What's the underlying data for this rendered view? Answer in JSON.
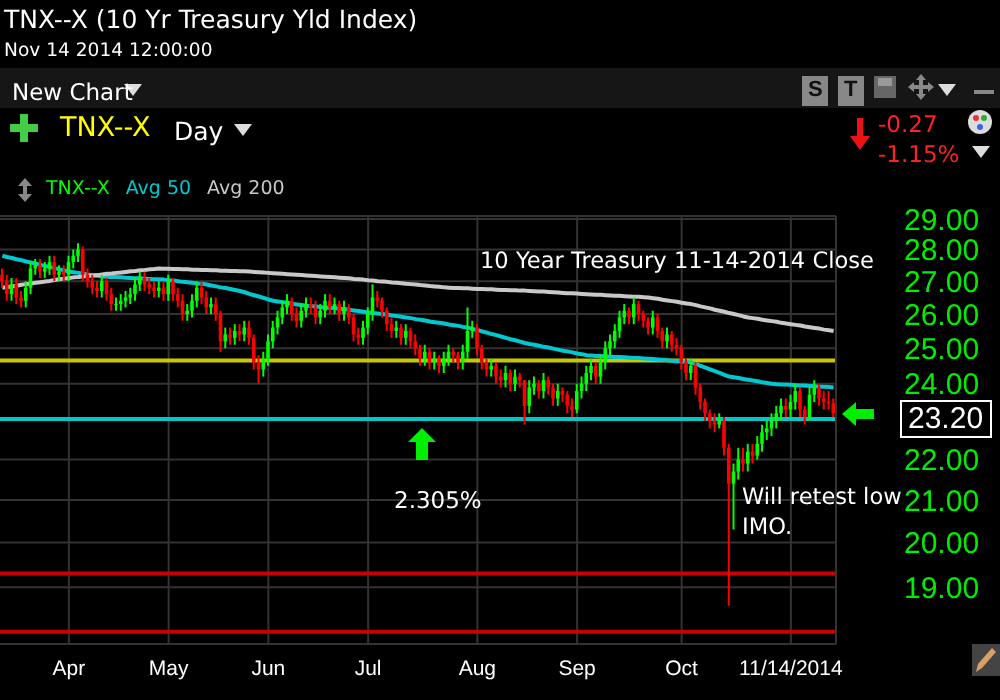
{
  "chart_data": {
    "type": "candlestick",
    "title": "TNX--X (10 Yr Treasury Yld Index)",
    "subtitle": "Nov 14 2014 12:00:00",
    "categories": [
      null,
      null,
      null,
      null,
      null,
      null,
      null,
      null,
      null,
      null,
      null,
      null,
      null,
      null,
      "Apr",
      null,
      null,
      null,
      null,
      null,
      null,
      null,
      null,
      null,
      null,
      null,
      null,
      null,
      null,
      null,
      null,
      null,
      null,
      null,
      null,
      "May",
      null,
      null,
      null,
      null,
      null,
      null,
      null,
      null,
      null,
      null,
      null,
      null,
      null,
      null,
      null,
      null,
      null,
      null,
      null,
      null,
      "Jun",
      null,
      null,
      null,
      null,
      null,
      null,
      null,
      null,
      null,
      null,
      null,
      null,
      null,
      null,
      null,
      null,
      null,
      null,
      null,
      null,
      "Jul",
      null,
      null,
      null,
      null,
      null,
      null,
      null,
      null,
      null,
      null,
      null,
      null,
      null,
      null,
      null,
      null,
      null,
      null,
      null,
      null,
      null,
      null,
      "Aug",
      null,
      null,
      null,
      null,
      null,
      null,
      null,
      null,
      null,
      null,
      null,
      null,
      null,
      null,
      null,
      null,
      null,
      null,
      null,
      null,
      "Sep",
      null,
      null,
      null,
      null,
      null,
      null,
      null,
      null,
      null,
      null,
      null,
      null,
      null,
      null,
      null,
      null,
      null,
      null,
      null,
      null,
      null,
      "Oct",
      null,
      null,
      null,
      null,
      null,
      null,
      null,
      null,
      null,
      null,
      null,
      null,
      null,
      null,
      null,
      null,
      null,
      null,
      null,
      null,
      null,
      null,
      "11/14/2014",
      null,
      null,
      null,
      null,
      null,
      null,
      null,
      null,
      null
    ],
    "series": [
      {
        "name": "TNX--X",
        "color": "#00ff00",
        "colors": [
          "#ff0000",
          "#ff0000",
          "#00ff00",
          "#ff0000",
          "#ff0000",
          "#00ff00",
          "#00ff00",
          "#00ff00",
          "#ff0000",
          "#00ff00",
          "#00ff00",
          "#ff0000",
          "#00ff00",
          "#ff0000",
          "#00ff00",
          "#00ff00",
          "#00ff00",
          "#ff0000",
          "#ff0000",
          "#ff0000",
          "#ff0000",
          "#00ff00",
          "#ff0000",
          "#ff0000",
          "#00ff00",
          "#00ff00",
          "#00ff00",
          "#00ff00",
          "#00ff00",
          "#00ff00",
          "#ff0000",
          "#ff0000",
          "#ff0000",
          "#00ff00",
          "#ff0000",
          "#00ff00",
          "#ff0000",
          "#ff0000",
          "#ff0000",
          "#00ff00",
          "#00ff00",
          "#00ff00",
          "#ff0000",
          "#ff0000",
          "#00ff00",
          "#ff0000",
          "#ff0000",
          "#00ff00",
          "#ff0000",
          "#00ff00",
          "#ff0000",
          "#00ff00",
          "#ff0000",
          "#ff0000",
          "#ff0000",
          "#00ff00",
          "#00ff00",
          "#00ff00",
          "#00ff00",
          "#00ff00",
          "#00ff00",
          "#ff0000",
          "#ff0000",
          "#00ff00",
          "#00ff00",
          "#ff0000",
          "#ff0000",
          "#00ff00",
          "#00ff00",
          "#ff0000",
          "#00ff00",
          "#ff0000",
          "#00ff00",
          "#ff0000",
          "#ff0000",
          "#ff0000",
          "#00ff00",
          "#00ff00",
          "#00ff00",
          "#ff0000",
          "#ff0000",
          "#ff0000",
          "#ff0000",
          "#00ff00",
          "#ff0000",
          "#00ff00",
          "#ff0000",
          "#ff0000",
          "#ff0000",
          "#00ff00",
          "#ff0000",
          "#00ff00",
          "#ff0000",
          "#00ff00",
          "#00ff00",
          "#ff0000",
          "#ff0000",
          "#00ff00",
          "#00ff00",
          "#00ff00",
          "#ff0000",
          "#ff0000",
          "#ff0000",
          "#00ff00",
          "#ff0000",
          "#ff0000",
          "#00ff00",
          "#ff0000",
          "#00ff00",
          "#ff0000",
          "#ff0000",
          "#00ff00",
          "#00ff00",
          "#ff0000",
          "#00ff00",
          "#ff0000",
          "#ff0000",
          "#00ff00",
          "#ff0000",
          "#ff0000",
          "#ff0000",
          "#00ff00",
          "#00ff00",
          "#00ff00",
          "#00ff00",
          "#ff0000",
          "#00ff00",
          "#00ff00",
          "#00ff00",
          "#00ff00",
          "#00ff00",
          "#00ff00",
          "#ff0000",
          "#00ff00",
          "#ff0000",
          "#ff0000",
          "#ff0000",
          "#00ff00",
          "#ff0000",
          "#ff0000",
          "#00ff00",
          "#ff0000",
          "#ff0000",
          "#ff0000",
          "#ff0000",
          "#00ff00",
          "#ff0000",
          "#ff0000",
          "#ff0000",
          "#ff0000",
          "#ff0000",
          "#00ff00",
          "#ff0000",
          "#ff0000",
          "#00ff00",
          "#00ff00",
          "#ff0000",
          "#00ff00",
          "#ff0000",
          "#00ff00",
          "#00ff00",
          "#00ff00",
          "#00ff00",
          "#00ff00",
          "#00ff00",
          "#ff0000",
          "#00ff00",
          "#00ff00",
          "#ff0000",
          "#ff0000",
          "#00ff00",
          "#00ff00",
          "#ff0000",
          "#ff0000",
          "#ff0000",
          "#ff0000"
        ],
        "ohlc": [
          [
            27.2,
            27.4,
            26.8,
            27.0
          ],
          [
            27.0,
            27.2,
            26.4,
            26.6
          ],
          [
            26.6,
            27.1,
            26.4,
            26.9
          ],
          [
            26.9,
            27.1,
            26.3,
            26.5
          ],
          [
            26.5,
            26.7,
            26.2,
            26.4
          ],
          [
            26.4,
            27.0,
            26.2,
            26.8
          ],
          [
            26.8,
            27.6,
            26.6,
            27.4
          ],
          [
            27.4,
            27.7,
            27.2,
            27.5
          ],
          [
            27.5,
            27.7,
            27.1,
            27.3
          ],
          [
            27.3,
            27.6,
            27.1,
            27.4
          ],
          [
            27.4,
            27.8,
            27.2,
            27.6
          ],
          [
            27.6,
            27.8,
            27.0,
            27.2
          ],
          [
            27.2,
            27.5,
            27.0,
            27.3
          ],
          [
            27.3,
            27.5,
            27.0,
            27.2
          ],
          [
            27.2,
            27.8,
            27.0,
            27.6
          ],
          [
            27.6,
            28.0,
            27.4,
            27.8
          ],
          [
            27.8,
            28.2,
            27.6,
            28.0
          ],
          [
            28.0,
            28.1,
            27.0,
            27.2
          ],
          [
            27.2,
            27.4,
            26.8,
            27.0
          ],
          [
            27.0,
            27.2,
            26.6,
            26.8
          ],
          [
            26.8,
            27.0,
            26.5,
            26.7
          ],
          [
            26.7,
            27.2,
            26.5,
            27.0
          ],
          [
            27.0,
            27.1,
            26.4,
            26.6
          ],
          [
            26.6,
            26.8,
            26.1,
            26.3
          ],
          [
            26.3,
            26.5,
            26.1,
            26.3
          ],
          [
            26.3,
            26.6,
            26.1,
            26.4
          ],
          [
            26.4,
            26.7,
            26.2,
            26.5
          ],
          [
            26.5,
            26.8,
            26.3,
            26.6
          ],
          [
            26.6,
            27.1,
            26.4,
            26.9
          ],
          [
            26.9,
            27.3,
            26.7,
            27.1
          ],
          [
            27.1,
            27.3,
            26.7,
            26.9
          ],
          [
            26.9,
            27.1,
            26.6,
            26.8
          ],
          [
            26.8,
            27.0,
            26.5,
            26.7
          ],
          [
            26.7,
            27.0,
            26.5,
            26.8
          ],
          [
            26.8,
            27.0,
            26.4,
            26.6
          ],
          [
            26.6,
            27.2,
            26.4,
            27.0
          ],
          [
            27.0,
            27.1,
            26.4,
            26.6
          ],
          [
            26.6,
            26.8,
            26.2,
            26.4
          ],
          [
            26.4,
            26.6,
            25.8,
            26.0
          ],
          [
            26.0,
            26.3,
            25.8,
            26.1
          ],
          [
            26.1,
            26.6,
            25.9,
            26.4
          ],
          [
            26.4,
            27.0,
            26.2,
            26.8
          ],
          [
            26.8,
            27.0,
            26.3,
            26.5
          ],
          [
            26.5,
            26.7,
            26.0,
            26.2
          ],
          [
            26.2,
            26.5,
            26.0,
            26.3
          ],
          [
            26.3,
            26.5,
            25.8,
            26.0
          ],
          [
            26.0,
            26.1,
            24.9,
            25.2
          ],
          [
            25.2,
            25.6,
            25.0,
            25.4
          ],
          [
            25.4,
            25.6,
            25.1,
            25.3
          ],
          [
            25.3,
            25.7,
            25.1,
            25.5
          ],
          [
            25.5,
            25.7,
            25.2,
            25.4
          ],
          [
            25.4,
            25.8,
            25.2,
            25.6
          ],
          [
            25.6,
            25.8,
            25.1,
            25.3
          ],
          [
            25.3,
            25.4,
            24.4,
            24.6
          ],
          [
            24.6,
            24.8,
            24.0,
            24.4
          ],
          [
            24.4,
            24.9,
            24.2,
            24.7
          ],
          [
            24.7,
            25.4,
            24.5,
            25.2
          ],
          [
            25.2,
            25.8,
            25.0,
            25.6
          ],
          [
            25.6,
            26.1,
            25.4,
            25.9
          ],
          [
            25.9,
            26.4,
            25.7,
            26.2
          ],
          [
            26.2,
            26.6,
            26.0,
            26.4
          ],
          [
            26.4,
            26.5,
            25.8,
            26.0
          ],
          [
            26.0,
            26.2,
            25.6,
            25.8
          ],
          [
            25.8,
            26.3,
            25.6,
            26.1
          ],
          [
            26.1,
            26.5,
            25.9,
            26.3
          ],
          [
            26.3,
            26.5,
            26.0,
            26.2
          ],
          [
            26.2,
            26.4,
            25.7,
            25.9
          ],
          [
            25.9,
            26.3,
            25.7,
            26.1
          ],
          [
            26.1,
            26.6,
            25.9,
            26.4
          ],
          [
            26.4,
            26.6,
            26.0,
            26.2
          ],
          [
            26.2,
            26.5,
            26.0,
            26.3
          ],
          [
            26.3,
            26.4,
            25.8,
            26.0
          ],
          [
            26.0,
            26.4,
            25.8,
            26.2
          ],
          [
            26.2,
            26.3,
            25.7,
            25.9
          ],
          [
            25.9,
            26.0,
            25.2,
            25.4
          ],
          [
            25.4,
            25.6,
            25.1,
            25.3
          ],
          [
            25.3,
            25.8,
            25.1,
            25.6
          ],
          [
            25.6,
            26.2,
            25.4,
            26.0
          ],
          [
            26.0,
            26.9,
            25.8,
            26.5
          ],
          [
            26.5,
            26.7,
            26.2,
            26.4
          ],
          [
            26.4,
            26.5,
            25.9,
            26.1
          ],
          [
            26.1,
            26.2,
            25.5,
            25.7
          ],
          [
            25.7,
            25.9,
            25.3,
            25.5
          ],
          [
            25.5,
            25.8,
            25.3,
            25.6
          ],
          [
            25.6,
            25.7,
            25.1,
            25.3
          ],
          [
            25.3,
            25.7,
            25.1,
            25.5
          ],
          [
            25.5,
            25.6,
            25.0,
            25.2
          ],
          [
            25.2,
            25.4,
            24.8,
            25.0
          ],
          [
            25.0,
            25.1,
            24.5,
            24.7
          ],
          [
            24.7,
            25.1,
            24.5,
            24.9
          ],
          [
            24.9,
            25.0,
            24.4,
            24.6
          ],
          [
            24.6,
            24.9,
            24.4,
            24.7
          ],
          [
            24.7,
            24.8,
            24.3,
            24.5
          ],
          [
            24.5,
            24.9,
            24.3,
            24.7
          ],
          [
            24.7,
            25.1,
            24.5,
            24.9
          ],
          [
            24.9,
            25.0,
            24.6,
            24.8
          ],
          [
            24.8,
            24.9,
            24.4,
            24.6
          ],
          [
            24.6,
            25.1,
            24.4,
            24.9
          ],
          [
            24.9,
            26.2,
            24.7,
            25.5
          ],
          [
            25.5,
            25.8,
            25.3,
            25.6
          ],
          [
            25.6,
            25.7,
            24.8,
            25.0
          ],
          [
            25.0,
            25.1,
            24.4,
            24.6
          ],
          [
            24.6,
            24.7,
            24.2,
            24.4
          ],
          [
            24.4,
            24.7,
            24.2,
            24.5
          ],
          [
            24.5,
            24.6,
            24.0,
            24.2
          ],
          [
            24.2,
            24.4,
            23.9,
            24.1
          ],
          [
            24.1,
            24.5,
            23.9,
            24.3
          ],
          [
            24.3,
            24.4,
            23.8,
            24.0
          ],
          [
            24.0,
            24.4,
            23.8,
            24.2
          ],
          [
            24.2,
            24.3,
            23.9,
            24.1
          ],
          [
            24.1,
            24.1,
            22.9,
            23.4
          ],
          [
            23.4,
            24.1,
            23.2,
            23.9
          ],
          [
            23.9,
            24.2,
            23.7,
            24.0
          ],
          [
            24.0,
            24.1,
            23.6,
            23.8
          ],
          [
            23.8,
            24.3,
            23.6,
            24.1
          ],
          [
            24.1,
            24.2,
            23.7,
            23.9
          ],
          [
            23.9,
            24.0,
            23.4,
            23.6
          ],
          [
            23.6,
            24.0,
            23.4,
            23.8
          ],
          [
            23.8,
            23.9,
            23.5,
            23.7
          ],
          [
            23.7,
            23.8,
            23.2,
            23.4
          ],
          [
            23.4,
            23.6,
            23.1,
            23.3
          ],
          [
            23.3,
            24.0,
            23.2,
            23.8
          ],
          [
            23.8,
            24.2,
            23.6,
            24.0
          ],
          [
            24.0,
            24.5,
            23.8,
            24.3
          ],
          [
            24.3,
            24.7,
            24.1,
            24.5
          ],
          [
            24.5,
            24.6,
            24.0,
            24.2
          ],
          [
            24.2,
            24.8,
            24.0,
            24.6
          ],
          [
            24.6,
            25.2,
            24.4,
            25.0
          ],
          [
            25.0,
            25.4,
            24.8,
            25.2
          ],
          [
            25.2,
            25.7,
            25.0,
            25.5
          ],
          [
            25.5,
            26.1,
            25.3,
            25.9
          ],
          [
            25.9,
            26.3,
            25.7,
            26.1
          ],
          [
            26.1,
            26.2,
            25.7,
            25.9
          ],
          [
            25.9,
            26.5,
            25.7,
            26.3
          ],
          [
            26.3,
            26.4,
            25.8,
            26.0
          ],
          [
            26.0,
            26.1,
            25.6,
            25.8
          ],
          [
            25.8,
            25.9,
            25.4,
            25.6
          ],
          [
            25.6,
            26.1,
            25.4,
            25.9
          ],
          [
            25.9,
            26.0,
            25.3,
            25.5
          ],
          [
            25.5,
            25.6,
            25.0,
            25.2
          ],
          [
            25.2,
            25.6,
            25.0,
            25.4
          ],
          [
            25.4,
            25.5,
            24.9,
            25.1
          ],
          [
            25.1,
            25.3,
            24.8,
            25.0
          ],
          [
            25.0,
            25.1,
            24.4,
            24.6
          ],
          [
            24.6,
            24.7,
            24.1,
            24.3
          ],
          [
            24.3,
            24.7,
            24.1,
            24.5
          ],
          [
            24.5,
            24.6,
            23.7,
            23.9
          ],
          [
            23.9,
            24.0,
            23.3,
            23.5
          ],
          [
            23.5,
            23.6,
            23.0,
            23.2
          ],
          [
            23.2,
            23.3,
            22.8,
            23.0
          ],
          [
            23.0,
            23.2,
            22.7,
            22.9
          ],
          [
            22.9,
            23.2,
            22.8,
            23.0
          ],
          [
            23.0,
            23.1,
            22.1,
            22.3
          ],
          [
            22.3,
            22.4,
            18.6,
            21.4
          ],
          [
            21.4,
            21.9,
            20.3,
            21.7
          ],
          [
            21.7,
            22.3,
            21.5,
            22.0
          ],
          [
            22.0,
            22.3,
            21.7,
            21.9
          ],
          [
            21.9,
            22.4,
            21.7,
            22.2
          ],
          [
            22.2,
            22.4,
            21.9,
            22.1
          ],
          [
            22.1,
            22.6,
            22.0,
            22.4
          ],
          [
            22.4,
            22.9,
            22.2,
            22.7
          ],
          [
            22.7,
            23.0,
            22.5,
            22.8
          ],
          [
            22.8,
            23.2,
            22.6,
            23.0
          ],
          [
            23.0,
            23.4,
            22.8,
            23.2
          ],
          [
            23.2,
            23.6,
            23.0,
            23.4
          ],
          [
            23.4,
            23.6,
            23.1,
            23.3
          ],
          [
            23.3,
            23.7,
            23.1,
            23.5
          ],
          [
            23.5,
            24.0,
            23.3,
            23.8
          ],
          [
            23.8,
            23.9,
            23.1,
            23.3
          ],
          [
            23.3,
            23.4,
            22.9,
            23.1
          ],
          [
            23.1,
            23.9,
            23.0,
            23.7
          ],
          [
            23.7,
            24.1,
            23.5,
            23.9
          ],
          [
            23.9,
            24.0,
            23.4,
            23.6
          ],
          [
            23.6,
            23.8,
            23.3,
            23.5
          ],
          [
            23.5,
            23.8,
            23.3,
            23.47
          ],
          [
            23.47,
            23.6,
            23.1,
            23.2
          ]
        ]
      },
      {
        "name": "Avg 50",
        "type": "line",
        "color": "#00c8d0",
        "values": [
          27.8,
          27.76,
          27.73,
          27.69,
          27.66,
          27.62,
          27.59,
          27.55,
          27.51,
          27.48,
          27.44,
          27.41,
          27.37,
          27.34,
          27.3,
          27.28,
          27.26,
          27.24,
          27.21,
          27.19,
          27.17,
          27.15,
          27.14,
          27.13,
          27.13,
          27.12,
          27.11,
          27.1,
          27.09,
          27.09,
          27.08,
          27.07,
          27.06,
          27.06,
          27.05,
          27.03,
          27.02,
          27.0,
          26.98,
          26.97,
          26.95,
          26.93,
          26.92,
          26.9,
          26.87,
          26.84,
          26.81,
          26.79,
          26.76,
          26.73,
          26.7,
          26.66,
          26.61,
          26.57,
          26.53,
          26.49,
          26.44,
          26.4,
          26.38,
          26.36,
          26.34,
          26.31,
          26.29,
          26.27,
          26.25,
          26.24,
          26.23,
          26.21,
          26.2,
          26.19,
          26.18,
          26.16,
          26.15,
          26.13,
          26.11,
          26.09,
          26.07,
          26.05,
          26.03,
          26.02,
          26.0,
          25.98,
          25.96,
          25.94,
          25.92,
          25.9,
          25.88,
          25.85,
          25.83,
          25.81,
          25.78,
          25.76,
          25.74,
          25.72,
          25.69,
          25.67,
          25.65,
          25.62,
          25.6,
          25.56,
          25.53,
          25.49,
          25.45,
          25.41,
          25.38,
          25.34,
          25.3,
          25.26,
          25.23,
          25.19,
          25.15,
          25.12,
          25.1,
          25.07,
          25.04,
          25.02,
          24.99,
          24.96,
          24.93,
          24.91,
          24.88,
          24.85,
          24.83,
          24.8,
          24.79,
          24.78,
          24.78,
          24.77,
          24.76,
          24.75,
          24.75,
          24.74,
          24.73,
          24.72,
          24.72,
          24.71,
          24.7,
          24.69,
          24.68,
          24.67,
          24.66,
          24.64,
          24.63,
          24.62,
          24.61,
          24.6,
          24.55,
          24.5,
          24.45,
          24.4,
          24.35,
          24.3,
          24.25,
          24.2,
          24.18,
          24.16,
          24.13,
          24.11,
          24.09,
          24.07,
          24.04,
          24.02,
          24.0,
          23.99,
          23.98,
          23.98,
          23.97,
          23.96,
          23.95,
          23.95,
          23.94,
          23.93,
          23.92,
          23.92,
          23.91,
          23.9
        ]
      },
      {
        "name": "Avg 200",
        "type": "line",
        "color": "#c8c8c8",
        "values": [
          26.8,
          26.82,
          26.84,
          26.86,
          26.89,
          26.91,
          26.93,
          26.95,
          26.97,
          26.99,
          27.01,
          27.04,
          27.06,
          27.08,
          27.1,
          27.12,
          27.13,
          27.15,
          27.16,
          27.18,
          27.19,
          27.21,
          27.23,
          27.24,
          27.26,
          27.27,
          27.29,
          27.31,
          27.32,
          27.34,
          27.35,
          27.37,
          27.38,
          27.4,
          27.39,
          27.39,
          27.38,
          27.38,
          27.37,
          27.37,
          27.36,
          27.36,
          27.35,
          27.35,
          27.34,
          27.34,
          27.33,
          27.33,
          27.32,
          27.32,
          27.31,
          27.31,
          27.3,
          27.29,
          27.28,
          27.27,
          27.26,
          27.25,
          27.24,
          27.23,
          27.22,
          27.21,
          27.2,
          27.19,
          27.18,
          27.17,
          27.16,
          27.15,
          27.14,
          27.13,
          27.12,
          27.11,
          27.1,
          27.09,
          27.07,
          27.06,
          27.05,
          27.03,
          27.02,
          27.0,
          26.99,
          26.98,
          26.96,
          26.95,
          26.94,
          26.92,
          26.91,
          26.9,
          26.88,
          26.87,
          26.85,
          26.84,
          26.83,
          26.81,
          26.8,
          26.79,
          26.79,
          26.78,
          26.78,
          26.77,
          26.76,
          26.76,
          26.75,
          26.75,
          26.74,
          26.73,
          26.73,
          26.72,
          26.72,
          26.71,
          26.71,
          26.7,
          26.69,
          26.68,
          26.68,
          26.67,
          26.66,
          26.65,
          26.64,
          26.63,
          26.63,
          26.62,
          26.61,
          26.6,
          26.59,
          26.58,
          26.58,
          26.57,
          26.56,
          26.55,
          26.55,
          26.54,
          26.53,
          26.52,
          26.52,
          26.51,
          26.5,
          26.48,
          26.46,
          26.43,
          26.41,
          26.39,
          26.37,
          26.34,
          26.32,
          26.3,
          26.27,
          26.23,
          26.2,
          26.17,
          26.13,
          26.1,
          26.07,
          26.03,
          26.0,
          25.97,
          25.93,
          25.9,
          25.88,
          25.86,
          25.83,
          25.81,
          25.79,
          25.77,
          25.74,
          25.72,
          25.7,
          25.68,
          25.66,
          25.63,
          25.61,
          25.59,
          25.57,
          25.54,
          25.52,
          25.5
        ]
      }
    ],
    "ylim": [
      17.8,
      29.1
    ],
    "yticks": [
      {
        "value": 19,
        "label": "19.00"
      },
      {
        "value": 20,
        "label": "20.00"
      },
      {
        "value": 21,
        "label": "21.00"
      },
      {
        "value": 22,
        "label": "22.00"
      },
      {
        "value": 24,
        "label": "24.00"
      },
      {
        "value": 25,
        "label": "25.00"
      },
      {
        "value": 26,
        "label": "26.00"
      },
      {
        "value": 27,
        "label": "27.00"
      },
      {
        "value": 28,
        "label": "28.00"
      },
      {
        "value": 29,
        "label": "29.00"
      }
    ],
    "log": "y",
    "grid": true,
    "legend": "top left",
    "ref_lines": [
      {
        "axis": "y",
        "value": 24.65,
        "color": "#c8c800"
      },
      {
        "axis": "y",
        "value": 23.05,
        "color": "#00c8c8"
      },
      {
        "axis": "y",
        "value": 19.3,
        "color": "#c80000"
      },
      {
        "axis": "y",
        "value": 18.05,
        "color": "#c80000"
      }
    ],
    "annotations": [
      "10 Year Treasury 11-14-2014 Close",
      "Will retest low IMO.",
      "23.20",
      "2.305%",
      "New Chart",
      "TNX--X",
      "Day",
      "-0.27",
      "-1.15%",
      "S",
      "T"
    ]
  }
}
